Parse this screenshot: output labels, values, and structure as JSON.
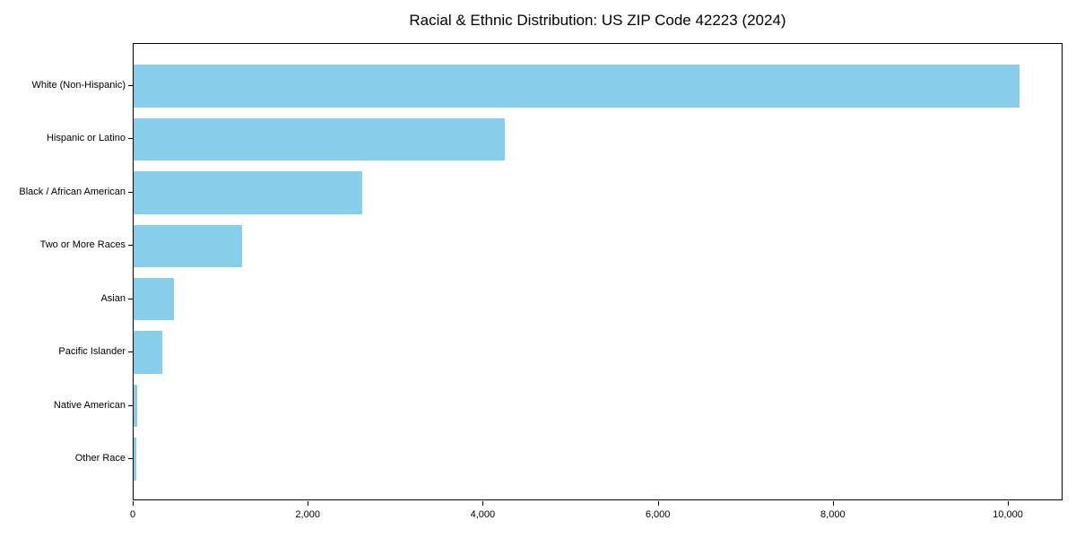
{
  "chart_data": {
    "type": "bar",
    "orientation": "horizontal",
    "title": "Racial & Ethnic Distribution: US ZIP Code 42223 (2024)",
    "categories": [
      "White (Non-Hispanic)",
      "Hispanic or Latino",
      "Black / African American",
      "Two or More Races",
      "Asian",
      "Pacific Islander",
      "Native American",
      "Other Race"
    ],
    "values": [
      10120,
      4240,
      2610,
      1240,
      460,
      330,
      40,
      30
    ],
    "xlabel": "",
    "ylabel": "",
    "xlim": [
      0,
      10625
    ],
    "x_ticks": [
      0,
      2000,
      4000,
      6000,
      8000,
      10000
    ],
    "x_tick_labels": [
      "0",
      "2,000",
      "4,000",
      "6,000",
      "8,000",
      "10,000"
    ],
    "bar_color": "#87CEEB",
    "text_color": "#000000",
    "grid": false,
    "legend": null
  }
}
